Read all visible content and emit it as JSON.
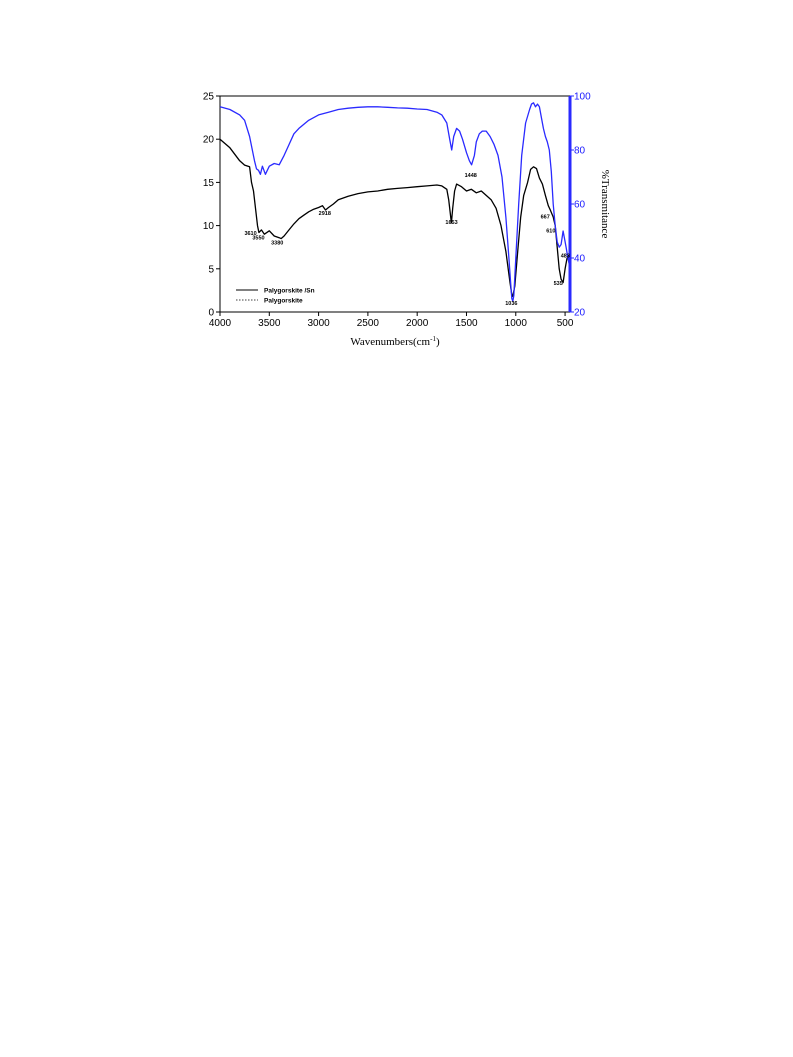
{
  "chart_data": {
    "type": "line",
    "xlabel": "Wavenumbers(cm",
    "xlabel_sup": "-1",
    "xlabel_close": ")",
    "ylabel_right": "%Transmitance",
    "xlim": [
      4000,
      450
    ],
    "ylim_left": [
      0,
      25
    ],
    "ylim_right": [
      20,
      100
    ],
    "x_ticks": [
      4000,
      3500,
      3000,
      2500,
      2000,
      1500,
      1000,
      500
    ],
    "y_ticks_left": [
      0,
      5,
      10,
      15,
      20,
      25
    ],
    "y_ticks_right": [
      20,
      40,
      60,
      80,
      100
    ],
    "series": [
      {
        "name": "Palygorskite /Sn",
        "axis": "left",
        "color": "#000000",
        "points": [
          [
            4000,
            20
          ],
          [
            3900,
            19
          ],
          [
            3800,
            17.5
          ],
          [
            3750,
            17
          ],
          [
            3700,
            16.8
          ],
          [
            3680,
            15
          ],
          [
            3660,
            14
          ],
          [
            3640,
            12
          ],
          [
            3620,
            10
          ],
          [
            3605,
            9.2
          ],
          [
            3580,
            9.5
          ],
          [
            3550,
            9
          ],
          [
            3500,
            9.4
          ],
          [
            3450,
            8.8
          ],
          [
            3400,
            8.6
          ],
          [
            3380,
            8.5
          ],
          [
            3350,
            8.8
          ],
          [
            3300,
            9.5
          ],
          [
            3250,
            10.2
          ],
          [
            3200,
            10.8
          ],
          [
            3150,
            11.2
          ],
          [
            3100,
            11.6
          ],
          [
            3050,
            11.9
          ],
          [
            3000,
            12.1
          ],
          [
            2960,
            12.3
          ],
          [
            2930,
            11.8
          ],
          [
            2900,
            12.1
          ],
          [
            2850,
            12.5
          ],
          [
            2800,
            13
          ],
          [
            2700,
            13.4
          ],
          [
            2600,
            13.7
          ],
          [
            2500,
            13.9
          ],
          [
            2400,
            14
          ],
          [
            2300,
            14.2
          ],
          [
            2200,
            14.3
          ],
          [
            2100,
            14.4
          ],
          [
            2000,
            14.5
          ],
          [
            1900,
            14.6
          ],
          [
            1800,
            14.7
          ],
          [
            1750,
            14.6
          ],
          [
            1700,
            14.2
          ],
          [
            1680,
            13
          ],
          [
            1660,
            11
          ],
          [
            1653,
            10.3
          ],
          [
            1640,
            12
          ],
          [
            1620,
            14
          ],
          [
            1600,
            14.8
          ],
          [
            1550,
            14.5
          ],
          [
            1500,
            14
          ],
          [
            1450,
            14.2
          ],
          [
            1400,
            13.8
          ],
          [
            1350,
            14
          ],
          [
            1300,
            13.5
          ],
          [
            1250,
            13
          ],
          [
            1200,
            12
          ],
          [
            1150,
            10
          ],
          [
            1100,
            7
          ],
          [
            1060,
            3.5
          ],
          [
            1040,
            2
          ],
          [
            1030,
            1.8
          ],
          [
            1010,
            3
          ],
          [
            980,
            7
          ],
          [
            950,
            11
          ],
          [
            920,
            13.5
          ],
          [
            880,
            15
          ],
          [
            850,
            16.5
          ],
          [
            820,
            16.8
          ],
          [
            790,
            16.6
          ],
          [
            760,
            15.5
          ],
          [
            730,
            14.8
          ],
          [
            700,
            13.5
          ],
          [
            670,
            12.3
          ],
          [
            650,
            11.8
          ],
          [
            620,
            11
          ],
          [
            600,
            10
          ],
          [
            560,
            5
          ],
          [
            540,
            3.8
          ],
          [
            520,
            3.4
          ],
          [
            500,
            5
          ],
          [
            480,
            6.2
          ],
          [
            470,
            6.4
          ],
          [
            460,
            6.6
          ]
        ]
      },
      {
        "name": "Palygorskite",
        "axis": "right",
        "color": "#2a2aff",
        "points": [
          [
            4000,
            96
          ],
          [
            3900,
            95
          ],
          [
            3800,
            93
          ],
          [
            3750,
            91
          ],
          [
            3700,
            85
          ],
          [
            3650,
            76
          ],
          [
            3630,
            73
          ],
          [
            3610,
            72.5
          ],
          [
            3590,
            71
          ],
          [
            3570,
            74
          ],
          [
            3540,
            71
          ],
          [
            3500,
            74
          ],
          [
            3450,
            75
          ],
          [
            3400,
            74.5
          ],
          [
            3350,
            78
          ],
          [
            3300,
            82
          ],
          [
            3250,
            86
          ],
          [
            3200,
            88
          ],
          [
            3100,
            91
          ],
          [
            3000,
            93
          ],
          [
            2900,
            94
          ],
          [
            2800,
            95
          ],
          [
            2700,
            95.5
          ],
          [
            2600,
            95.8
          ],
          [
            2500,
            96
          ],
          [
            2400,
            96
          ],
          [
            2300,
            95.8
          ],
          [
            2200,
            95.6
          ],
          [
            2100,
            95.5
          ],
          [
            2000,
            95.2
          ],
          [
            1900,
            95
          ],
          [
            1800,
            94
          ],
          [
            1750,
            93
          ],
          [
            1700,
            90
          ],
          [
            1670,
            84
          ],
          [
            1650,
            80
          ],
          [
            1630,
            85
          ],
          [
            1600,
            88
          ],
          [
            1570,
            87
          ],
          [
            1540,
            84
          ],
          [
            1500,
            79
          ],
          [
            1470,
            76
          ],
          [
            1448,
            74.5
          ],
          [
            1420,
            78
          ],
          [
            1400,
            83
          ],
          [
            1370,
            86
          ],
          [
            1340,
            87
          ],
          [
            1300,
            87
          ],
          [
            1260,
            85
          ],
          [
            1220,
            82
          ],
          [
            1180,
            78
          ],
          [
            1140,
            70
          ],
          [
            1100,
            55
          ],
          [
            1070,
            40
          ],
          [
            1050,
            30
          ],
          [
            1040,
            25
          ],
          [
            1030,
            24
          ],
          [
            1020,
            26
          ],
          [
            1000,
            40
          ],
          [
            970,
            60
          ],
          [
            940,
            78
          ],
          [
            900,
            90
          ],
          [
            860,
            95
          ],
          [
            840,
            97
          ],
          [
            820,
            97.5
          ],
          [
            800,
            96
          ],
          [
            780,
            97
          ],
          [
            760,
            96
          ],
          [
            740,
            92
          ],
          [
            720,
            88
          ],
          [
            700,
            85
          ],
          [
            680,
            83
          ],
          [
            660,
            80
          ],
          [
            640,
            72
          ],
          [
            620,
            60
          ],
          [
            600,
            52
          ],
          [
            580,
            46
          ],
          [
            560,
            44
          ],
          [
            540,
            45
          ],
          [
            520,
            50
          ],
          [
            500,
            46
          ],
          [
            490,
            44
          ],
          [
            480,
            42
          ],
          [
            470,
            40
          ],
          [
            460,
            38
          ]
        ]
      }
    ],
    "peak_labels": [
      {
        "text": "3610",
        "x": 3610,
        "y": 8.9,
        "dx": -14
      },
      {
        "text": "3550",
        "x": 3550,
        "y": 8.4,
        "dx": -12
      },
      {
        "text": "3380",
        "x": 3380,
        "y": 7.8,
        "dx": -10
      },
      {
        "text": "2918",
        "x": 2918,
        "y": 11.2,
        "dx": -8
      },
      {
        "text": "1653",
        "x": 1653,
        "y": 10.2,
        "dx": -6
      },
      {
        "text": "1448",
        "x": 1448,
        "y": 15.6,
        "dx": -7
      },
      {
        "text": "1036",
        "x": 1036,
        "y": 0.8,
        "dx": -7
      },
      {
        "text": "667",
        "x": 667,
        "y": 10.8,
        "dx": -8
      },
      {
        "text": "610",
        "x": 610,
        "y": 9.2,
        "dx": -8
      },
      {
        "text": "535",
        "x": 535,
        "y": 3.1,
        "dx": -8
      },
      {
        "text": "483",
        "x": 483,
        "y": 6.3,
        "dx": -6
      }
    ],
    "legend": {
      "placement": "bottom-left",
      "entries": [
        {
          "label": "Palygorskite /Sn",
          "style": "solid"
        },
        {
          "label": "Palygorskite",
          "style": "dotted"
        }
      ]
    }
  }
}
